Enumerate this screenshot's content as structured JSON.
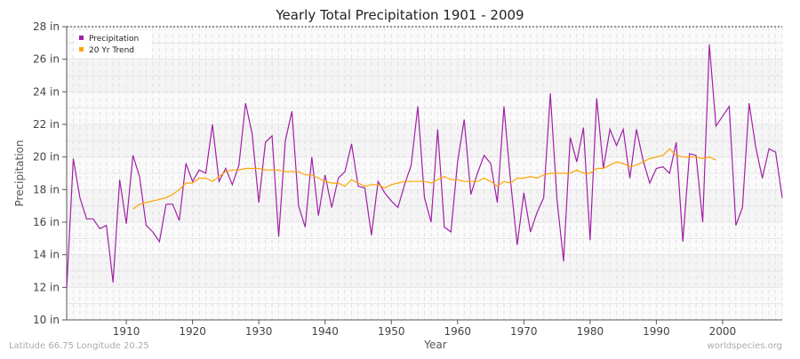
{
  "chart_data": {
    "type": "line",
    "title": "Yearly Total Precipitation 1901 - 2009",
    "xlabel": "Year",
    "ylabel": "Precipitation",
    "xlim": [
      1901,
      2009
    ],
    "ylim": [
      10,
      28
    ],
    "x_ticks": [
      1910,
      1920,
      1930,
      1940,
      1950,
      1960,
      1970,
      1980,
      1990,
      2000
    ],
    "y_ticks": [
      {
        "v": 10,
        "label": "10 in"
      },
      {
        "v": 12,
        "label": "12 in"
      },
      {
        "v": 14,
        "label": "14 in"
      },
      {
        "v": 16,
        "label": "16 in"
      },
      {
        "v": 18,
        "label": "18 in"
      },
      {
        "v": 20,
        "label": "20 in"
      },
      {
        "v": 22,
        "label": "22 in"
      },
      {
        "v": 24,
        "label": "24 in"
      },
      {
        "v": 26,
        "label": "26 in"
      },
      {
        "v": 28,
        "label": "28 in"
      }
    ],
    "grid": true,
    "legend_position": "top-left",
    "series": [
      {
        "name": "Precipitation",
        "color": "#a020a8",
        "start_year": 1901,
        "values": [
          11.9,
          19.9,
          17.5,
          16.2,
          16.2,
          15.6,
          15.8,
          12.3,
          18.6,
          15.9,
          20.1,
          18.8,
          15.8,
          15.4,
          14.8,
          17.1,
          17.1,
          16.1,
          19.6,
          18.5,
          19.2,
          19.0,
          22.0,
          18.5,
          19.3,
          18.3,
          19.5,
          23.3,
          21.4,
          17.2,
          20.9,
          21.3,
          15.1,
          21.0,
          22.8,
          17.0,
          15.7,
          20.0,
          16.4,
          18.9,
          16.9,
          18.7,
          19.1,
          20.8,
          18.2,
          18.1,
          15.2,
          18.5,
          17.8,
          17.3,
          16.9,
          18.3,
          19.5,
          23.1,
          17.5,
          16.0,
          21.7,
          15.7,
          15.4,
          19.7,
          22.3,
          17.7,
          19.0,
          20.1,
          19.6,
          17.2,
          23.1,
          18.5,
          14.6,
          17.8,
          15.4,
          16.6,
          17.5,
          23.9,
          17.4,
          13.6,
          21.2,
          19.7,
          21.8,
          14.9,
          23.6,
          19.3,
          21.7,
          20.7,
          21.7,
          18.7,
          21.7,
          19.8,
          18.4,
          19.3,
          19.4,
          19.0,
          20.9,
          14.8,
          20.2,
          20.1,
          16.0,
          26.9,
          21.9,
          22.5,
          23.1,
          15.8,
          16.9,
          23.3,
          20.6,
          18.7,
          20.5,
          20.3,
          17.5
        ]
      },
      {
        "name": "20 Yr Trend",
        "color": "#ffa500",
        "start_year": 1911,
        "values": [
          16.8,
          17.1,
          17.2,
          17.3,
          17.4,
          17.5,
          17.7,
          18.0,
          18.4,
          18.4,
          18.7,
          18.7,
          18.5,
          18.8,
          19.1,
          19.2,
          19.2,
          19.3,
          19.3,
          19.3,
          19.2,
          19.2,
          19.2,
          19.1,
          19.1,
          19.1,
          18.9,
          18.9,
          18.7,
          18.5,
          18.4,
          18.4,
          18.2,
          18.6,
          18.4,
          18.2,
          18.3,
          18.3,
          18.1,
          18.3,
          18.4,
          18.5,
          18.5,
          18.5,
          18.5,
          18.4,
          18.6,
          18.8,
          18.6,
          18.6,
          18.5,
          18.5,
          18.5,
          18.7,
          18.5,
          18.2,
          18.5,
          18.4,
          18.7,
          18.7,
          18.8,
          18.7,
          18.9,
          19.0,
          19.0,
          19.0,
          19.0,
          19.2,
          19.0,
          19.0,
          19.3,
          19.3,
          19.5,
          19.7,
          19.6,
          19.4,
          19.5,
          19.7,
          19.9,
          20.0,
          20.1,
          20.5,
          20.1,
          20.0,
          20.0,
          20.0,
          19.9,
          20.0,
          19.8
        ]
      }
    ]
  },
  "footer": {
    "location": "Latitude 66.75 Longitude 20.25",
    "site": "worldspecies.org"
  }
}
